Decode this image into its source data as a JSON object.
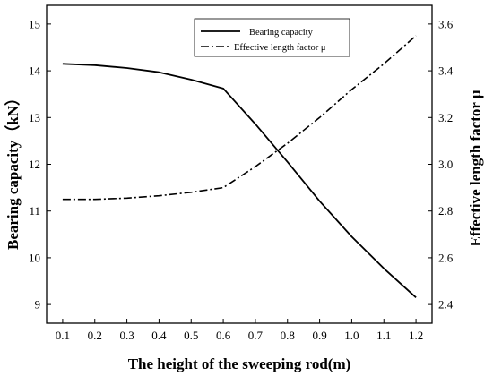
{
  "chart_data": {
    "type": "line",
    "title": "",
    "xlabel": "The height of the sweeping rod(m)",
    "ylabel_left": "Bearing capacity（kN）",
    "ylabel_right": "Effective length factor μ",
    "x": [
      0.1,
      0.2,
      0.3,
      0.4,
      0.5,
      0.6,
      0.7,
      0.8,
      0.9,
      1.0,
      1.1,
      1.2
    ],
    "x_ticks": [
      "0.1",
      "0.2",
      "0.3",
      "0.4",
      "0.5",
      "0.6",
      "0.7",
      "0.8",
      "0.9",
      "1.0",
      "1.1",
      "1.2"
    ],
    "xlim": [
      0.05,
      1.25
    ],
    "ylim_left": [
      8.6,
      15.4
    ],
    "ylim_right": [
      2.32,
      3.68
    ],
    "y_ticks_left": [
      "9",
      "10",
      "11",
      "12",
      "13",
      "14",
      "15"
    ],
    "y_ticks_right": [
      "2.4",
      "2.6",
      "2.8",
      "3.0",
      "3.2",
      "3.4",
      "3.6"
    ],
    "grid": false,
    "legend_position": "top-right",
    "series": [
      {
        "name": "Bearing capacity",
        "axis": "left",
        "style": "solid",
        "color": "#000000",
        "values": [
          14.15,
          14.12,
          14.06,
          13.97,
          13.81,
          13.62,
          12.86,
          12.05,
          11.21,
          10.45,
          9.77,
          9.15
        ]
      },
      {
        "name": "Effective length factor μ",
        "axis": "right",
        "style": "dashdot",
        "color": "#000000",
        "values": [
          2.85,
          2.85,
          2.855,
          2.865,
          2.88,
          2.9,
          2.99,
          3.09,
          3.2,
          3.32,
          3.43,
          3.55
        ]
      }
    ]
  }
}
